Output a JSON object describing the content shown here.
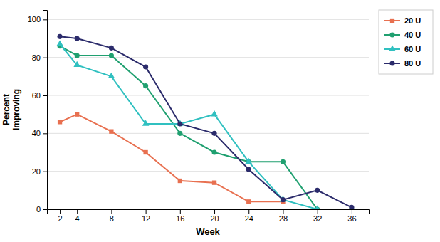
{
  "chart_data": {
    "type": "line",
    "xlabel": "Week",
    "ylabel": "Percent\nImproving",
    "x": [
      2,
      4,
      8,
      12,
      16,
      20,
      24,
      28,
      32,
      36
    ],
    "series": [
      {
        "name": "20 U",
        "color": "#E87050",
        "marker": "square",
        "values": [
          46,
          50,
          41,
          30,
          15,
          14,
          4,
          4,
          null,
          null
        ]
      },
      {
        "name": "40 U",
        "color": "#20A070",
        "marker": "circle",
        "values": [
          86,
          81,
          81,
          65,
          40,
          30,
          25,
          25,
          0,
          0
        ]
      },
      {
        "name": "60 U",
        "color": "#30C0C0",
        "marker": "triangle",
        "values": [
          87,
          76,
          70,
          45,
          45,
          50,
          25,
          5,
          0,
          0
        ]
      },
      {
        "name": "80 U",
        "color": "#2B2B6B",
        "marker": "circle",
        "values": [
          91,
          90,
          85,
          75,
          45,
          40,
          21,
          5,
          10,
          1
        ]
      }
    ],
    "xlim": [
      0.5,
      38
    ],
    "ylim": [
      0,
      105
    ],
    "xticks": [
      2,
      4,
      8,
      12,
      16,
      20,
      24,
      28,
      32,
      36
    ],
    "yticks": [
      0,
      20,
      40,
      60,
      80,
      100
    ],
    "grid": "y",
    "legend": "right"
  }
}
